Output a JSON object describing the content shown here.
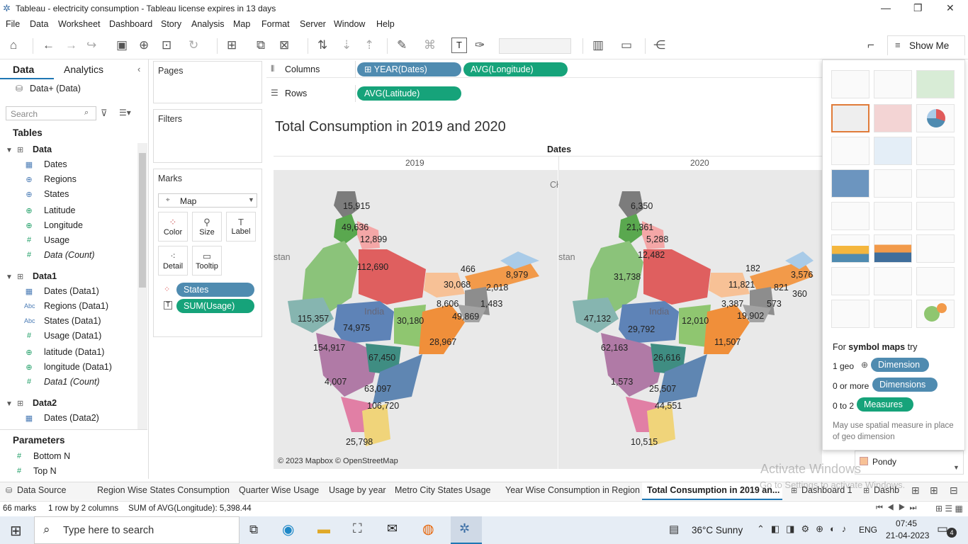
{
  "window": {
    "title": "Tableau - electricity consumption - Tableau license expires in 13 days"
  },
  "menu": [
    "File",
    "Data",
    "Worksheet",
    "Dashboard",
    "Story",
    "Analysis",
    "Map",
    "Format",
    "Server",
    "Window",
    "Help"
  ],
  "toolbar": {
    "show_me": "Show Me"
  },
  "datapane": {
    "tab_data": "Data",
    "tab_analytics": "Analytics",
    "source": "Data+ (Data)",
    "search_placeholder": "Search",
    "tables_header": "Tables",
    "tables": [
      {
        "name": "Data",
        "fields": [
          {
            "t": "cal",
            "n": "Dates"
          },
          {
            "t": "geo",
            "n": "Regions"
          },
          {
            "t": "geo",
            "n": "States"
          },
          {
            "t": "geo",
            "n": "Latitude"
          },
          {
            "t": "geo",
            "n": "Longitude"
          },
          {
            "t": "num",
            "n": "Usage"
          },
          {
            "t": "num",
            "n": "Data (Count)"
          }
        ]
      },
      {
        "name": "Data1",
        "fields": [
          {
            "t": "cal",
            "n": "Dates (Data1)"
          },
          {
            "t": "abc",
            "n": "Regions (Data1)"
          },
          {
            "t": "abc",
            "n": "States (Data1)"
          },
          {
            "t": "num",
            "n": "Usage (Data1)"
          },
          {
            "t": "geo",
            "n": "latitude (Data1)"
          },
          {
            "t": "geo",
            "n": "longitude (Data1)"
          },
          {
            "t": "num",
            "n": "Data1 (Count)"
          }
        ]
      },
      {
        "name": "Data2",
        "fields": [
          {
            "t": "cal",
            "n": "Dates (Data2)"
          }
        ]
      }
    ],
    "parameters_header": "Parameters",
    "parameters": [
      "Bottom N",
      "Top N"
    ]
  },
  "cards": {
    "pages": "Pages",
    "filters": "Filters",
    "marks": "Marks",
    "mark_type": "Map",
    "buttons": [
      "Color",
      "Size",
      "Label",
      "Detail",
      "Tooltip"
    ],
    "pill_states": "States",
    "pill_usage": "SUM(Usage)"
  },
  "shelves": {
    "columns": "Columns",
    "rows": "Rows",
    "col_pills": [
      "YEAR(Dates)",
      "AVG(Longitude)"
    ],
    "row_pills": [
      "AVG(Latitude)"
    ]
  },
  "view": {
    "title": "Total Consumption in 2019 and 2020",
    "header": "Dates",
    "years": [
      "2019",
      "2020"
    ],
    "country": "India",
    "edge_left": "stan",
    "edge_top": "Cł",
    "credit": "© 2023 Mapbox © OpenStreetMap",
    "labels_2019": [
      "15,915",
      "49,636",
      "12,899",
      "112,690",
      "466",
      "8,979",
      "30,068",
      "2,018",
      "8,606",
      "1,483",
      "115,357",
      "74,975",
      "30,180",
      "49,869",
      "154,917",
      "28,967",
      "67,450",
      "4,007",
      "63,097",
      "106,720",
      "25,798"
    ],
    "labels_2020": [
      "6,350",
      "21,361",
      "5,288",
      "12,482",
      "182",
      "3,576",
      "31,738",
      "11,821",
      "821",
      "360",
      "3,387",
      "573",
      "47,132",
      "12,010",
      "19,902",
      "29,792",
      "62,163",
      "11,507",
      "26,616",
      "1,573",
      "25,507",
      "44,551",
      "10,515"
    ]
  },
  "showme": {
    "hint_prefix": "For",
    "hint_bold": "symbol maps",
    "hint_suffix": "try",
    "r1": "1 geo",
    "r1_pill": "Dimension",
    "r2": "0 or more",
    "r2_pill": "Dimensions",
    "r3": "0 to 2",
    "r3_pill": "Measures",
    "note": "May use spatial measure in place of geo dimension"
  },
  "legend": {
    "item": "Pondy"
  },
  "watermark": {
    "line1": "Activate Windows",
    "line2": "Go to Settings to activate Windows."
  },
  "tabs": [
    "Data Source",
    "Region Wise States Consumption",
    "Quarter Wise Usage",
    "Usage by year",
    "Metro City States Usage",
    "Year Wise Consumption in Region",
    "Total Consumption in 2019 an...",
    "Dashboard 1",
    "Dashb"
  ],
  "status": {
    "marks": "66 marks",
    "rows": "1 row by 2 columns",
    "sum": "SUM of AVG(Longitude): 5,398.44"
  },
  "taskbar": {
    "search": "Type here to search",
    "weather": "36°C  Sunny",
    "lang": "ENG",
    "time": "07:45",
    "date": "21-04-2023",
    "badge": "4"
  },
  "colors": {
    "pill_blue": "#4f8bb0",
    "pill_green": "#16a37a"
  }
}
